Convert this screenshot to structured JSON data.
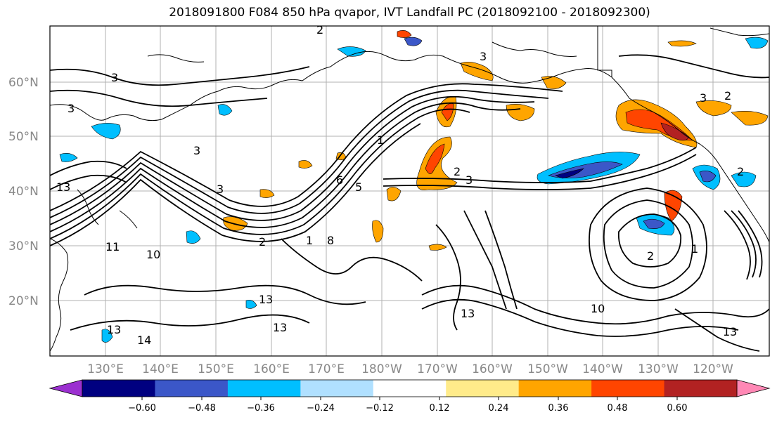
{
  "title": "2018091800 F084 850 hPa qvapor, IVT Landfall PC (2018092100 - 2018092300)",
  "map": {
    "lat_labels": [
      "60°N",
      "50°N",
      "40°N",
      "30°N",
      "20°N"
    ],
    "lon_labels": [
      "130°E",
      "140°E",
      "150°E",
      "160°E",
      "170°E",
      "180°W",
      "170°W",
      "160°W",
      "150°W",
      "140°W",
      "130°W",
      "120°W"
    ],
    "gridlines": true
  },
  "colorbar": {
    "colors": [
      "#9b30d0",
      "#000080",
      "#3b57c8",
      "#00bfff",
      "#b0e0ff",
      "#ffffff",
      "#ffeb8a",
      "#ffa500",
      "#ff4500",
      "#b22222",
      "#ff88b5"
    ],
    "tick_labels": [
      "−0.60",
      "−0.48",
      "−0.36",
      "−0.24",
      "−0.12",
      "0.12",
      "0.24",
      "0.36",
      "0.48",
      "0.60"
    ],
    "extend": "both"
  },
  "contour_labels": [
    "3",
    "3",
    "3",
    "3",
    "3",
    "3",
    "3",
    "2",
    "1",
    "2",
    "1",
    "1",
    "13",
    "13",
    "13",
    "14",
    "10",
    "10",
    "11",
    "13",
    "13",
    "13",
    "5",
    "8",
    "6",
    "2",
    "2",
    "2",
    "2"
  ]
}
